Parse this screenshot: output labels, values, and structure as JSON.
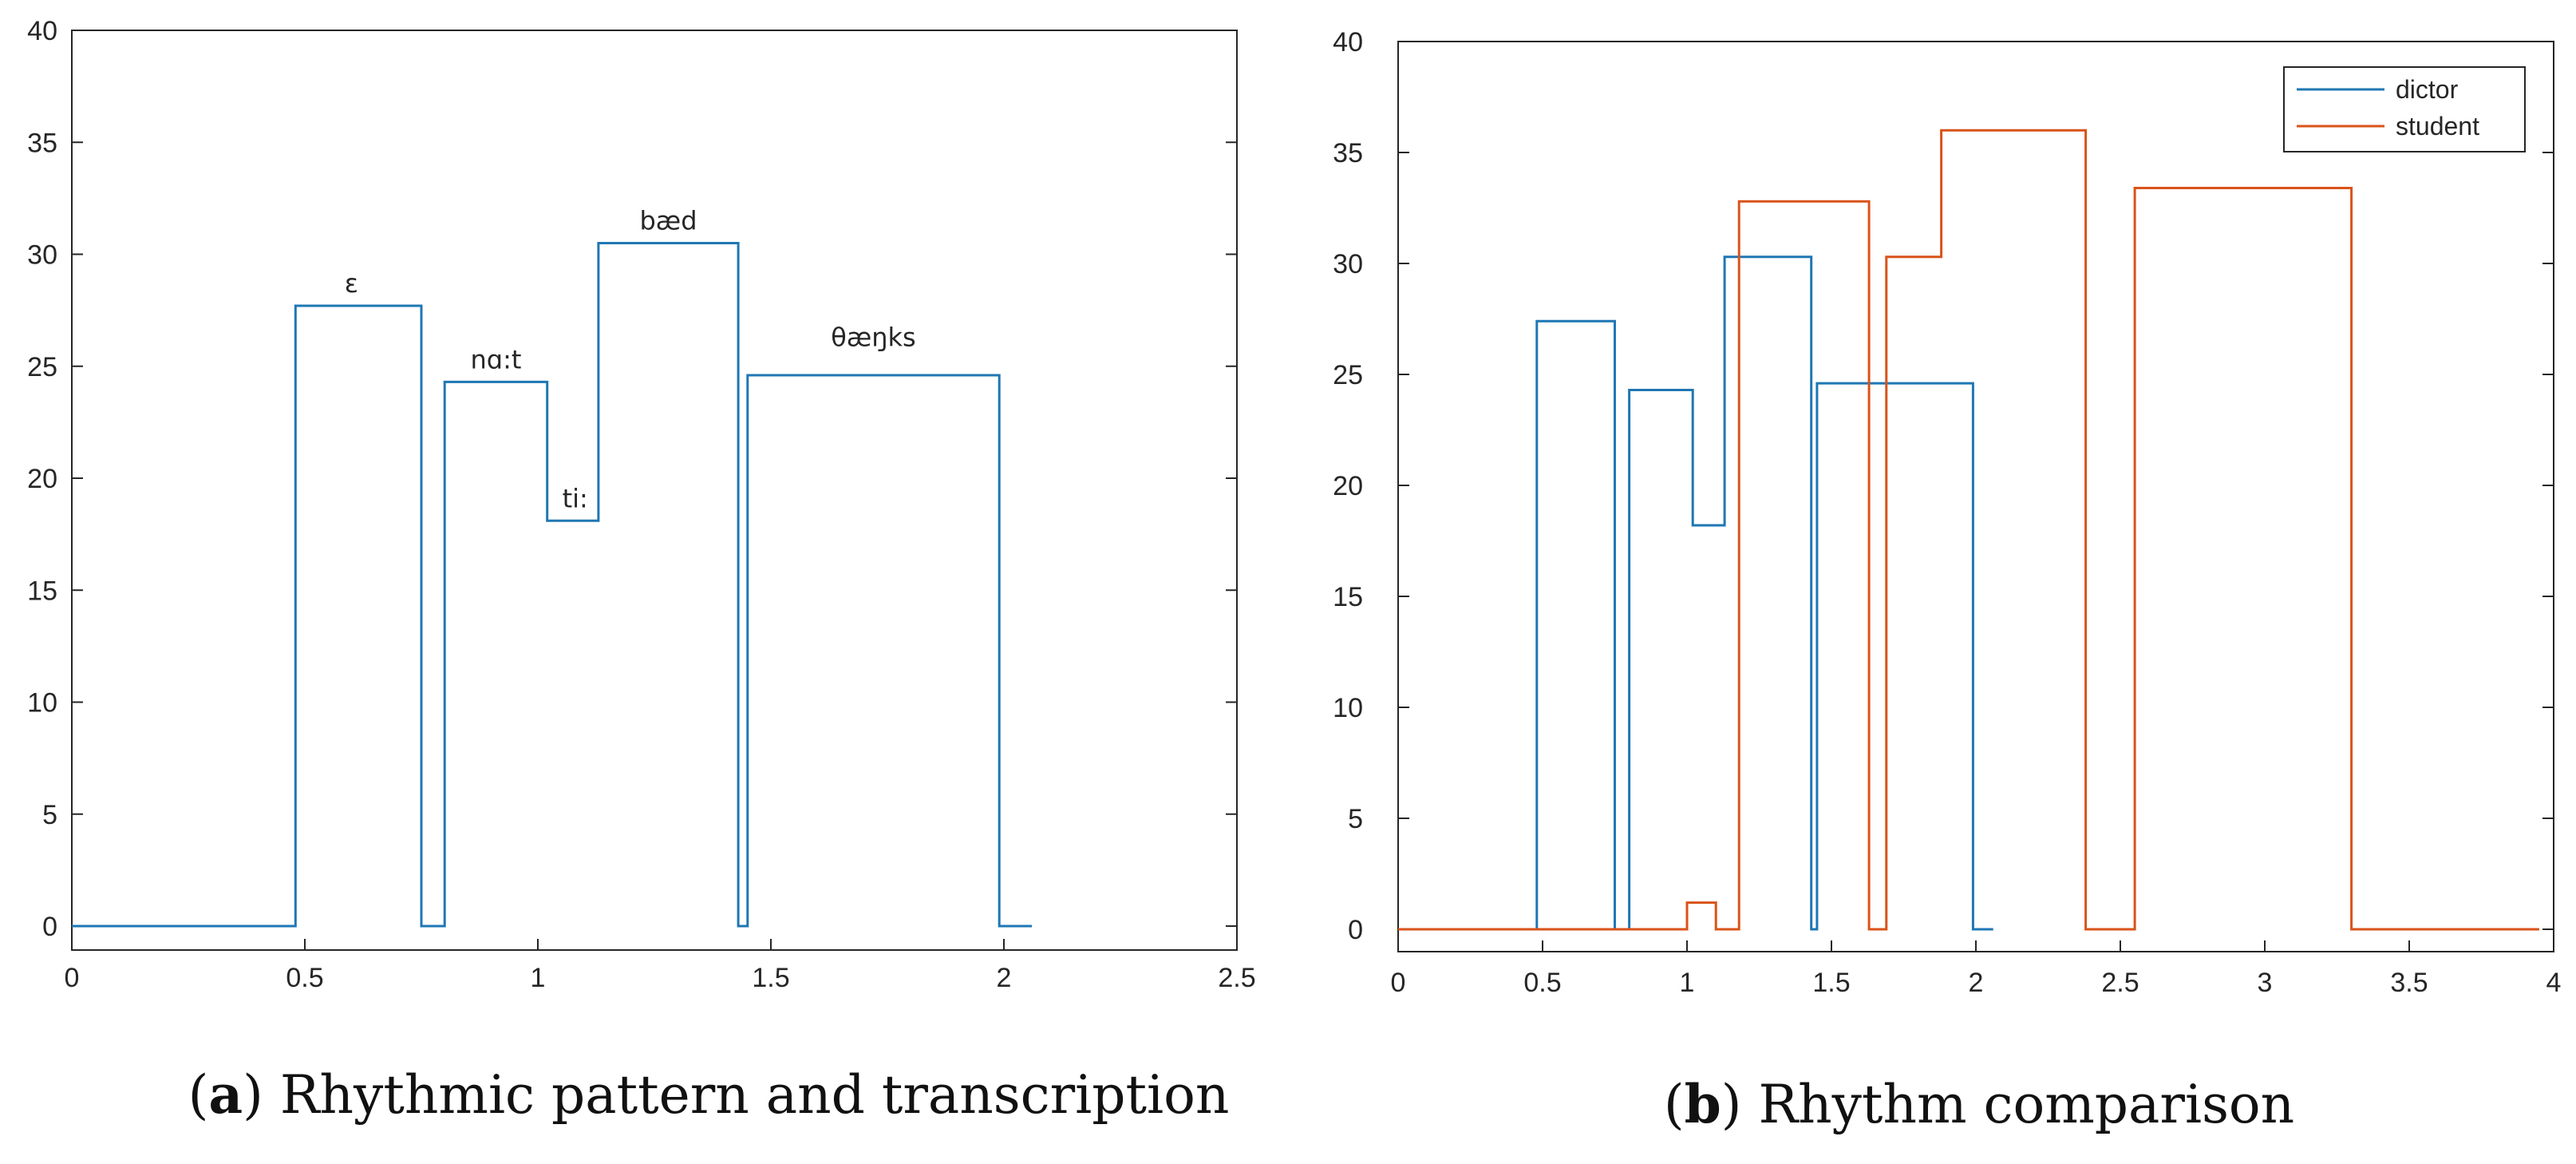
{
  "chart_data": [
    {
      "id": "a",
      "type": "line",
      "step": true,
      "title": "",
      "xlabel": "",
      "ylabel": "",
      "xlim": [
        0,
        2.5
      ],
      "ylim": [
        0,
        40
      ],
      "xticks": [
        "0",
        "0.5",
        "1",
        "1.5",
        "2",
        "2.5"
      ],
      "yticks": [
        "0",
        "5",
        "10",
        "15",
        "20",
        "25",
        "30",
        "35",
        "40"
      ],
      "grid": false,
      "caption_label": "a",
      "caption_text": ") Rhythmic pattern and transcription",
      "series": [
        {
          "name": "dictor",
          "color": "#1f77b4",
          "x": [
            0,
            0.48,
            0.48,
            0.75,
            0.75,
            0.8,
            0.8,
            1.02,
            1.02,
            1.13,
            1.13,
            1.43,
            1.43,
            1.45,
            1.45,
            1.99,
            1.99,
            2.06
          ],
          "y": [
            0,
            0,
            27.7,
            27.7,
            0,
            0,
            24.3,
            24.3,
            18.1,
            18.1,
            30.5,
            30.5,
            0,
            0,
            24.6,
            24.6,
            0,
            0
          ]
        }
      ],
      "annotations": [
        {
          "text": "ɛ",
          "x": 0.6,
          "y": 28.3
        },
        {
          "text": "nɑ:t",
          "x": 0.91,
          "y": 24.9
        },
        {
          "text": "ti:",
          "x": 1.08,
          "y": 18.7
        },
        {
          "text": "bæd",
          "x": 1.28,
          "y": 31.1
        },
        {
          "text": "θæŋks",
          "x": 1.72,
          "y": 25.9
        }
      ]
    },
    {
      "id": "b",
      "type": "line",
      "step": true,
      "title": "",
      "xlabel": "",
      "ylabel": "",
      "xlim": [
        0,
        4
      ],
      "ylim": [
        -1,
        40
      ],
      "xticks": [
        "0",
        "0.5",
        "1",
        "1.5",
        "2",
        "2.5",
        "3",
        "3.5",
        "4"
      ],
      "yticks": [
        "0",
        "5",
        "10",
        "15",
        "20",
        "25",
        "30",
        "35",
        "40"
      ],
      "grid": false,
      "legend_position": "top-right",
      "caption_label": "b",
      "caption_text": ") Rhythm comparison",
      "series": [
        {
          "name": "dictor",
          "color": "#1f77b4",
          "x": [
            0.48,
            0.48,
            0.75,
            0.75,
            0.8,
            0.8,
            1.02,
            1.02,
            1.13,
            1.13,
            1.43,
            1.43,
            1.45,
            1.45,
            1.99,
            1.99,
            2.06
          ],
          "y": [
            0,
            27.4,
            27.4,
            0,
            0,
            24.3,
            24.3,
            18.2,
            18.2,
            30.3,
            30.3,
            0,
            0,
            24.6,
            24.6,
            0,
            0
          ]
        },
        {
          "name": "student",
          "color": "#d95319",
          "x": [
            0,
            1.0,
            1.0,
            1.1,
            1.1,
            1.18,
            1.18,
            1.63,
            1.63,
            1.69,
            1.69,
            1.88,
            1.88,
            2.38,
            2.38,
            2.55,
            2.55,
            3.3,
            3.3,
            3.95
          ],
          "y": [
            0,
            0,
            1.2,
            1.2,
            0,
            0,
            32.8,
            32.8,
            0,
            0,
            30.3,
            30.3,
            36.0,
            36.0,
            0,
            0,
            33.4,
            33.4,
            0,
            0
          ]
        }
      ]
    }
  ]
}
